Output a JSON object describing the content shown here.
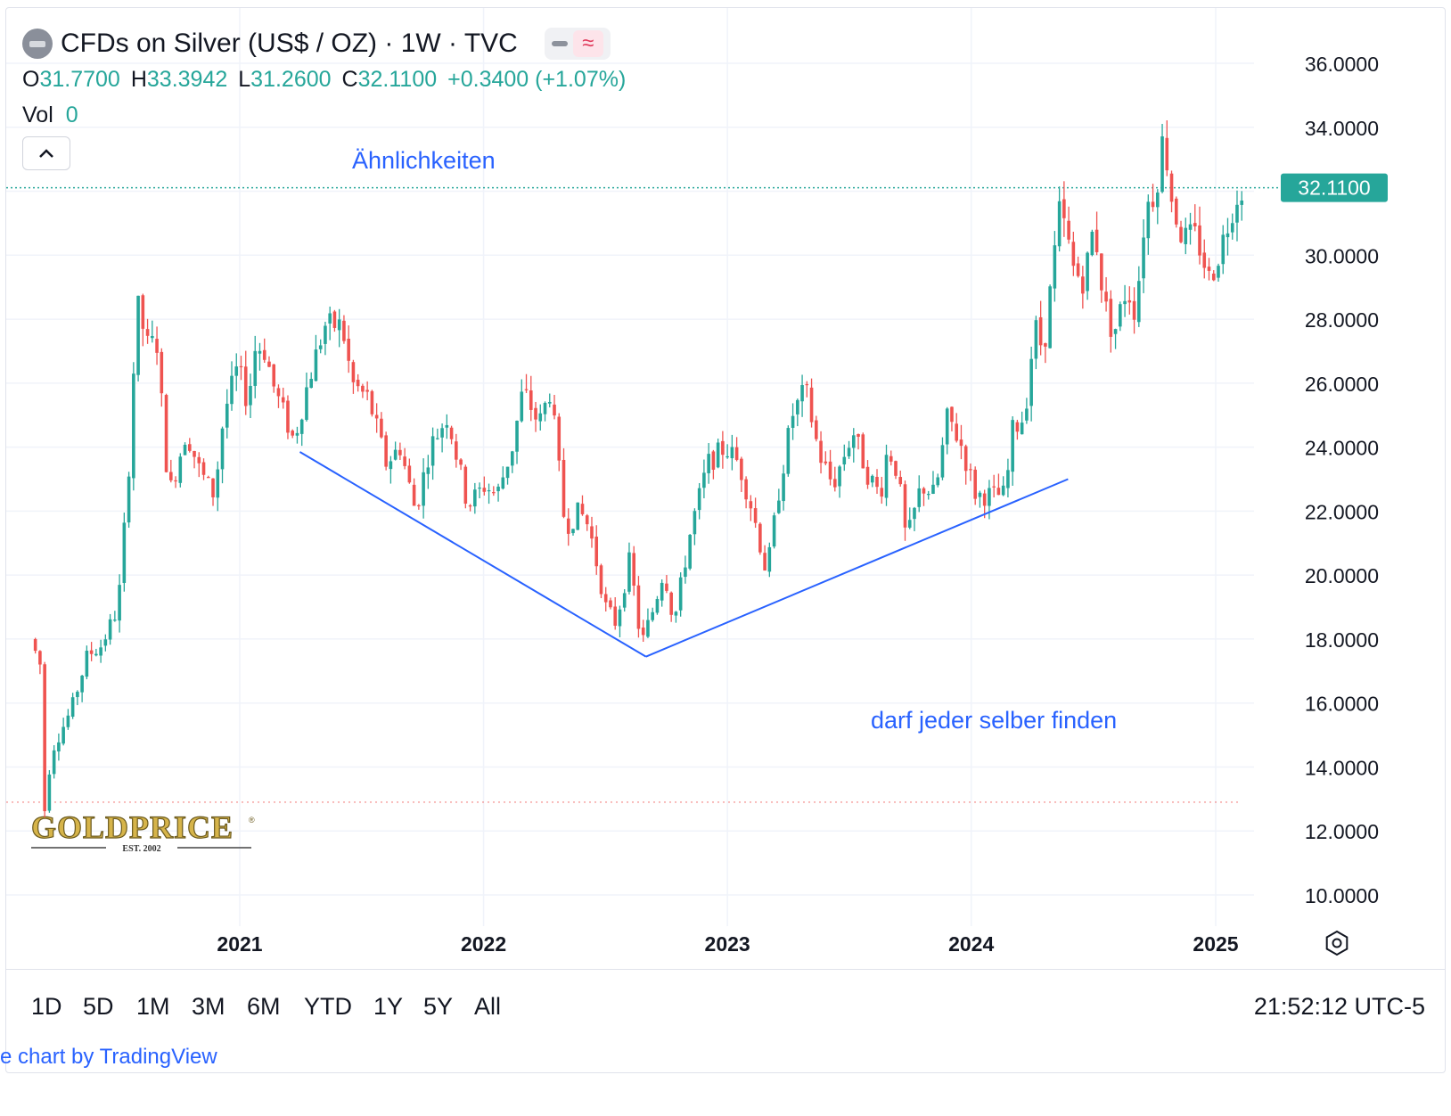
{
  "header": {
    "title": "CFDs on Silver (US$ / OZ) · 1W · TVC",
    "ohlc": [
      {
        "key": "O",
        "value": "31.7700"
      },
      {
        "key": "H",
        "value": "33.3942"
      },
      {
        "key": "L",
        "value": "31.2600"
      },
      {
        "key": "C",
        "value": "32.1100"
      }
    ],
    "change": "+0.3400 (+1.07%)",
    "volume_label": "Vol",
    "volume_value": "0"
  },
  "colors": {
    "up": "#26a69a",
    "down": "#ef5350",
    "annotation": "#2962ff",
    "price_tag": "#26a69a",
    "grid": "#f0f3fa"
  },
  "chart_data": {
    "type": "candlestick",
    "x_axis": {
      "type": "date",
      "range": [
        "2020-03-01",
        "2025-03-15"
      ],
      "tick_labels": [
        "2021",
        "2022",
        "2023",
        "2024",
        "2025"
      ]
    },
    "y_axis": {
      "range": [
        9.2,
        37.5
      ],
      "tick_labels": [
        "10.0000",
        "12.0000",
        "14.0000",
        "16.0000",
        "18.0000",
        "20.0000",
        "22.0000",
        "24.0000",
        "26.0000",
        "28.0000",
        "30.0000",
        "32.0000",
        "34.0000",
        "36.0000"
      ],
      "position": "right"
    },
    "last_price": "32.1100",
    "reference_level": 12.9,
    "grid": true,
    "price_path": [
      [
        "2020-03-01",
        18.0
      ],
      [
        "2020-03-15",
        17.2
      ],
      [
        "2020-03-19",
        12.1
      ],
      [
        "2020-04-01",
        14.5
      ],
      [
        "2020-05-01",
        15.8
      ],
      [
        "2020-05-25",
        17.5
      ],
      [
        "2020-06-15",
        17.8
      ],
      [
        "2020-07-10",
        19.0
      ],
      [
        "2020-07-25",
        23.0
      ],
      [
        "2020-08-07",
        28.5
      ],
      [
        "2020-08-25",
        27.0
      ],
      [
        "2020-09-05",
        27.5
      ],
      [
        "2020-09-24",
        22.5
      ],
      [
        "2020-10-20",
        24.5
      ],
      [
        "2020-11-10",
        23.2
      ],
      [
        "2020-12-01",
        22.5
      ],
      [
        "2020-12-15",
        25.0
      ],
      [
        "2021-01-05",
        26.5
      ],
      [
        "2021-01-20",
        25.4
      ],
      [
        "2021-02-01",
        27.2
      ],
      [
        "2021-02-15",
        27.0
      ],
      [
        "2021-03-01",
        25.8
      ],
      [
        "2021-03-30",
        24.2
      ],
      [
        "2021-04-20",
        26.0
      ],
      [
        "2021-05-15",
        27.8
      ],
      [
        "2021-06-10",
        27.8
      ],
      [
        "2021-06-25",
        26.0
      ],
      [
        "2021-07-20",
        25.5
      ],
      [
        "2021-08-15",
        23.5
      ],
      [
        "2021-09-05",
        24.0
      ],
      [
        "2021-09-28",
        22.0
      ],
      [
        "2021-10-20",
        24.0
      ],
      [
        "2021-11-15",
        25.0
      ],
      [
        "2021-12-15",
        22.2
      ],
      [
        "2022-01-10",
        22.8
      ],
      [
        "2022-01-28",
        22.5
      ],
      [
        "2022-02-20",
        24.0
      ],
      [
        "2022-03-08",
        25.8
      ],
      [
        "2022-04-01",
        24.7
      ],
      [
        "2022-04-18",
        25.8
      ],
      [
        "2022-05-10",
        21.5
      ],
      [
        "2022-06-01",
        22.0
      ],
      [
        "2022-06-15",
        21.5
      ],
      [
        "2022-07-10",
        19.0
      ],
      [
        "2022-07-25",
        18.5
      ],
      [
        "2022-08-15",
        20.5
      ],
      [
        "2022-09-01",
        17.8
      ],
      [
        "2022-09-20",
        19.0
      ],
      [
        "2022-10-05",
        20.2
      ],
      [
        "2022-10-20",
        18.5
      ],
      [
        "2022-11-15",
        21.5
      ],
      [
        "2022-12-10",
        23.5
      ],
      [
        "2023-01-05",
        24.0
      ],
      [
        "2023-01-25",
        23.5
      ],
      [
        "2023-02-15",
        22.0
      ],
      [
        "2023-03-08",
        20.0
      ],
      [
        "2023-03-25",
        22.5
      ],
      [
        "2023-04-15",
        25.0
      ],
      [
        "2023-05-05",
        25.8
      ],
      [
        "2023-05-25",
        23.8
      ],
      [
        "2023-06-15",
        22.8
      ],
      [
        "2023-07-15",
        24.5
      ],
      [
        "2023-08-05",
        23.2
      ],
      [
        "2023-08-25",
        22.5
      ],
      [
        "2023-09-05",
        24.0
      ],
      [
        "2023-09-20",
        23.2
      ],
      [
        "2023-10-03",
        21.0
      ],
      [
        "2023-10-25",
        22.8
      ],
      [
        "2023-11-15",
        22.5
      ],
      [
        "2023-12-04",
        25.0
      ],
      [
        "2023-12-25",
        24.0
      ],
      [
        "2024-01-15",
        22.5
      ],
      [
        "2024-02-15",
        22.5
      ],
      [
        "2024-02-28",
        22.5
      ],
      [
        "2024-03-10",
        24.5
      ],
      [
        "2024-03-28",
        25.0
      ],
      [
        "2024-04-12",
        27.8
      ],
      [
        "2024-04-25",
        27.0
      ],
      [
        "2024-05-20",
        31.5
      ],
      [
        "2024-06-10",
        29.5
      ],
      [
        "2024-06-25",
        29.2
      ],
      [
        "2024-07-10",
        31.0
      ],
      [
        "2024-07-25",
        28.5
      ],
      [
        "2024-08-08",
        27.5
      ],
      [
        "2024-08-28",
        29.0
      ],
      [
        "2024-09-10",
        28.2
      ],
      [
        "2024-09-25",
        31.5
      ],
      [
        "2024-10-10",
        32.0
      ],
      [
        "2024-10-22",
        33.8
      ],
      [
        "2024-11-05",
        31.5
      ],
      [
        "2024-11-20",
        30.5
      ],
      [
        "2024-12-10",
        30.6
      ],
      [
        "2024-12-30",
        29.2
      ],
      [
        "2025-01-15",
        30.2
      ],
      [
        "2025-02-05",
        31.7
      ],
      [
        "2025-02-14",
        32.1
      ]
    ]
  },
  "annotations": {
    "text_top": "Ähnlichkeiten",
    "text_bottom": "darf jeder selber finden",
    "lines": [
      {
        "from": [
          "2021-04-01",
          23.85
        ],
        "to": [
          "2022-09-01",
          17.45
        ]
      },
      {
        "from": [
          "2022-09-01",
          17.45
        ],
        "to": [
          "2024-05-25",
          23.0
        ]
      }
    ]
  },
  "watermark": {
    "brand": "GOLDPRICE",
    "sub": "EST. 2002"
  },
  "range_buttons": [
    "1D",
    "5D",
    "1M",
    "3M",
    "6M",
    "YTD",
    "1Y",
    "5Y",
    "All"
  ],
  "clock": "21:52:12 UTC-5",
  "footer": {
    "prefix": "e",
    "text": "chart by TradingView"
  }
}
